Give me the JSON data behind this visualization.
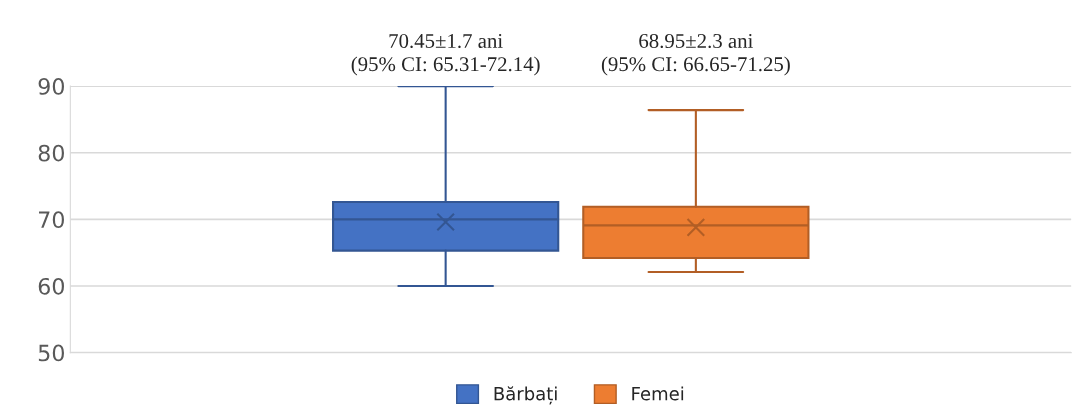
{
  "chart_data": {
    "type": "box",
    "categories": [
      null
    ],
    "series": [
      {
        "name": "Bărbați",
        "color": "#4472c4",
        "boxes": [
          {
            "low": 60,
            "q1": 65.3,
            "median": 70,
            "q3": 72.6,
            "high": 90,
            "mean": 69.6
          }
        ]
      },
      {
        "name": "Femei",
        "color": "#ed7d31",
        "boxes": [
          {
            "low": 62.1,
            "q1": 64.2,
            "median": 69.1,
            "q3": 71.9,
            "high": 86.4,
            "mean": 68.8
          }
        ]
      }
    ],
    "annotations": [
      "70.45±1.7 ani\n(95% CI: 65.31-72.14)",
      "68.95±2.3 ani\n(95% CI: 66.65-71.25)"
    ],
    "ylim": [
      50,
      90
    ],
    "yticks": [
      50,
      60,
      70,
      80,
      90
    ],
    "grid": "y",
    "legend": "bottom",
    "marker": "cross"
  }
}
